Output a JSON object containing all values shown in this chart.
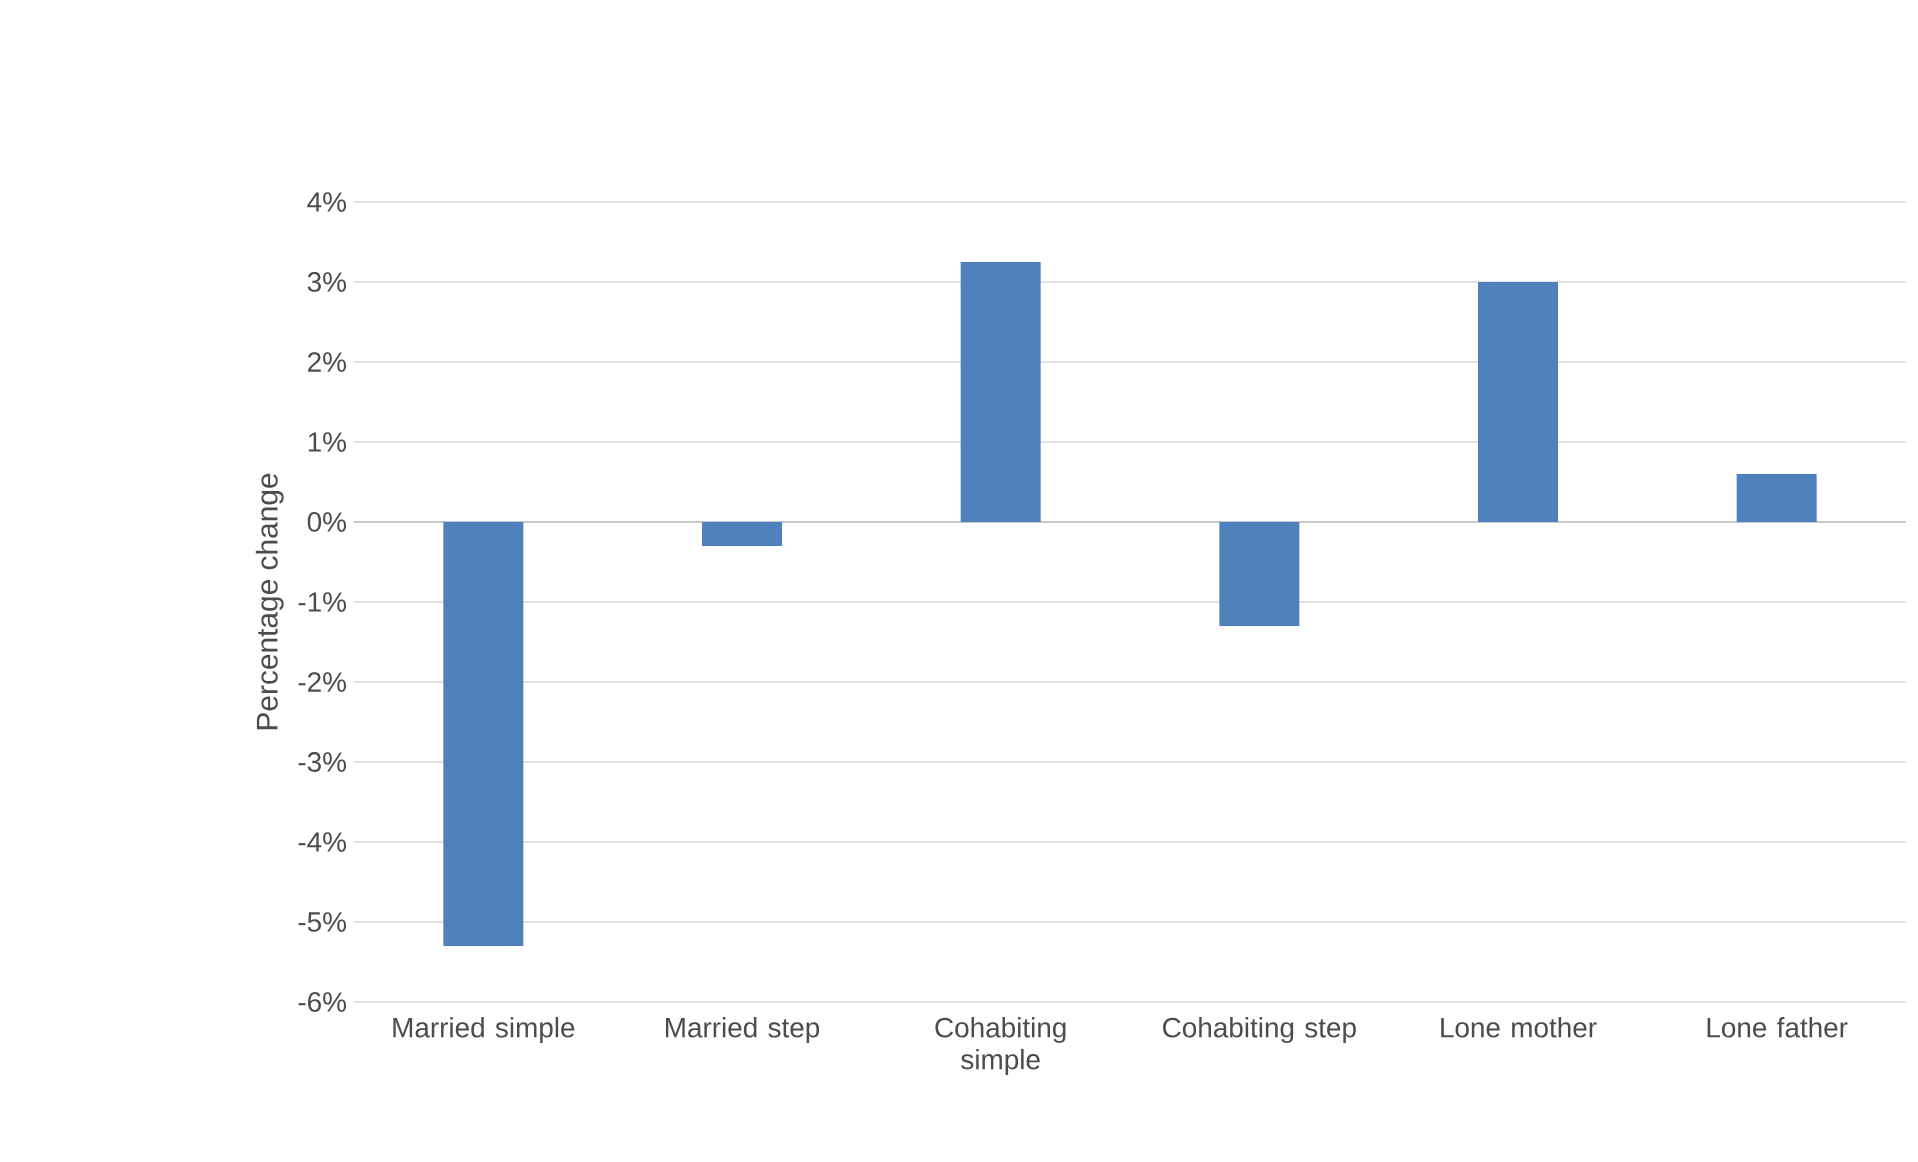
{
  "chart_data": {
    "type": "bar",
    "ylabel": "Percentage change",
    "categories": [
      "Married simple",
      "Married step",
      "Cohabiting simple",
      "Cohabiting step",
      "Lone mother",
      "Lone father"
    ],
    "values": [
      -5.3,
      -0.3,
      3.25,
      -1.3,
      3.0,
      0.6
    ],
    "color": "#4f81bd",
    "ylim": [
      -6,
      4
    ],
    "yticks": [
      {
        "value": -6,
        "label": "-6%"
      },
      {
        "value": -5,
        "label": "-5%"
      },
      {
        "value": -4,
        "label": "-4%"
      },
      {
        "value": -3,
        "label": "-3%"
      },
      {
        "value": -2,
        "label": "-2%"
      },
      {
        "value": -1,
        "label": "-1%"
      },
      {
        "value": 0,
        "label": "0%"
      },
      {
        "value": 1,
        "label": "1%"
      },
      {
        "value": 2,
        "label": "2%"
      },
      {
        "value": 3,
        "label": "3%"
      },
      {
        "value": 4,
        "label": "4%"
      }
    ],
    "grid": "y"
  }
}
